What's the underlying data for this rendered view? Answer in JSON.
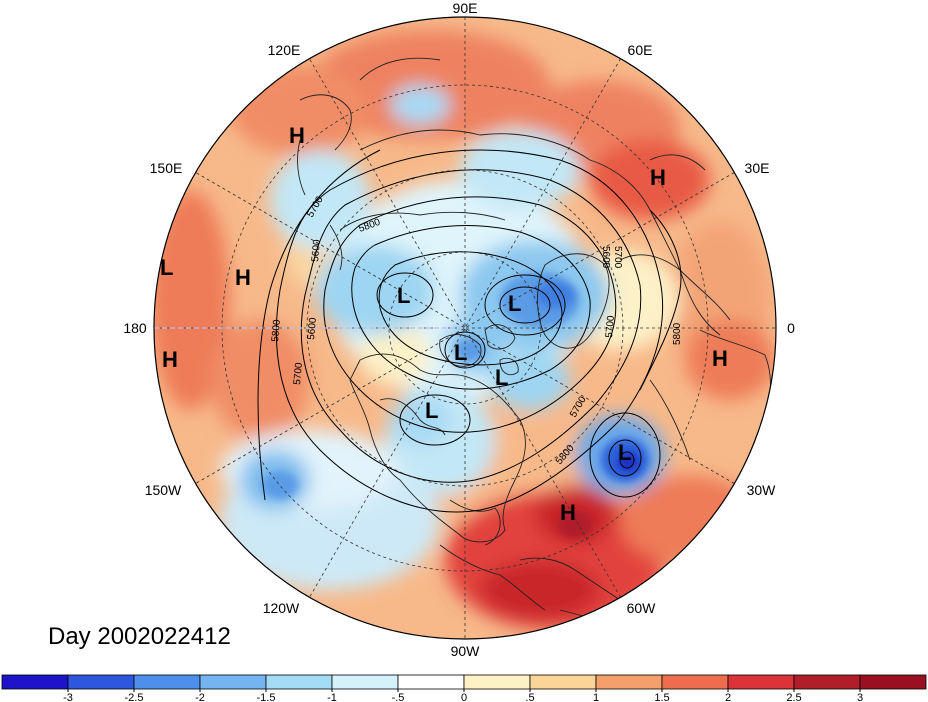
{
  "map": {
    "projection": "north-polar-stereographic",
    "date_label": "Day 2002022412",
    "longitude_labels": [
      {
        "text": "90E"
      },
      {
        "text": "60E"
      },
      {
        "text": "30E"
      },
      {
        "text": "0"
      },
      {
        "text": "30W"
      },
      {
        "text": "60W"
      },
      {
        "text": "90W"
      },
      {
        "text": "120W"
      },
      {
        "text": "150W"
      },
      {
        "text": "180"
      },
      {
        "text": "150E"
      },
      {
        "text": "120E"
      }
    ],
    "pressure_centers": [
      {
        "type": "H",
        "text": "H"
      },
      {
        "type": "H",
        "text": "H"
      },
      {
        "type": "L",
        "text": "L"
      },
      {
        "type": "H",
        "text": "H"
      },
      {
        "type": "H",
        "text": "H"
      },
      {
        "type": "L",
        "text": "L"
      },
      {
        "type": "L",
        "text": "L"
      },
      {
        "type": "L",
        "text": "L"
      },
      {
        "type": "L",
        "text": "L"
      },
      {
        "type": "L",
        "text": "L"
      },
      {
        "type": "H",
        "text": "H"
      },
      {
        "type": "L",
        "text": "L"
      },
      {
        "type": "H",
        "text": "H"
      }
    ],
    "contour_labels": [
      "5700",
      "5600",
      "5800",
      "5600",
      "5700",
      "5800",
      "5700",
      "5800",
      "5700",
      "5600",
      "5700",
      "5800"
    ]
  },
  "colorbar": {
    "ticks": [
      "-3",
      "-2.5",
      "-2",
      "-1.5",
      "-1",
      "-.5",
      "0",
      ".5",
      "1",
      "1.5",
      "2",
      "2.5",
      "3"
    ],
    "colors": [
      "#1d13c8",
      "#2e57e0",
      "#4f8fec",
      "#74b4f0",
      "#a4dcf6",
      "#d5f1fb",
      "#ffffff",
      "#fdf2c6",
      "#fbd497",
      "#f59f6b",
      "#ee6d4f",
      "#dc3338",
      "#b01e2a",
      "#9b1020"
    ]
  }
}
